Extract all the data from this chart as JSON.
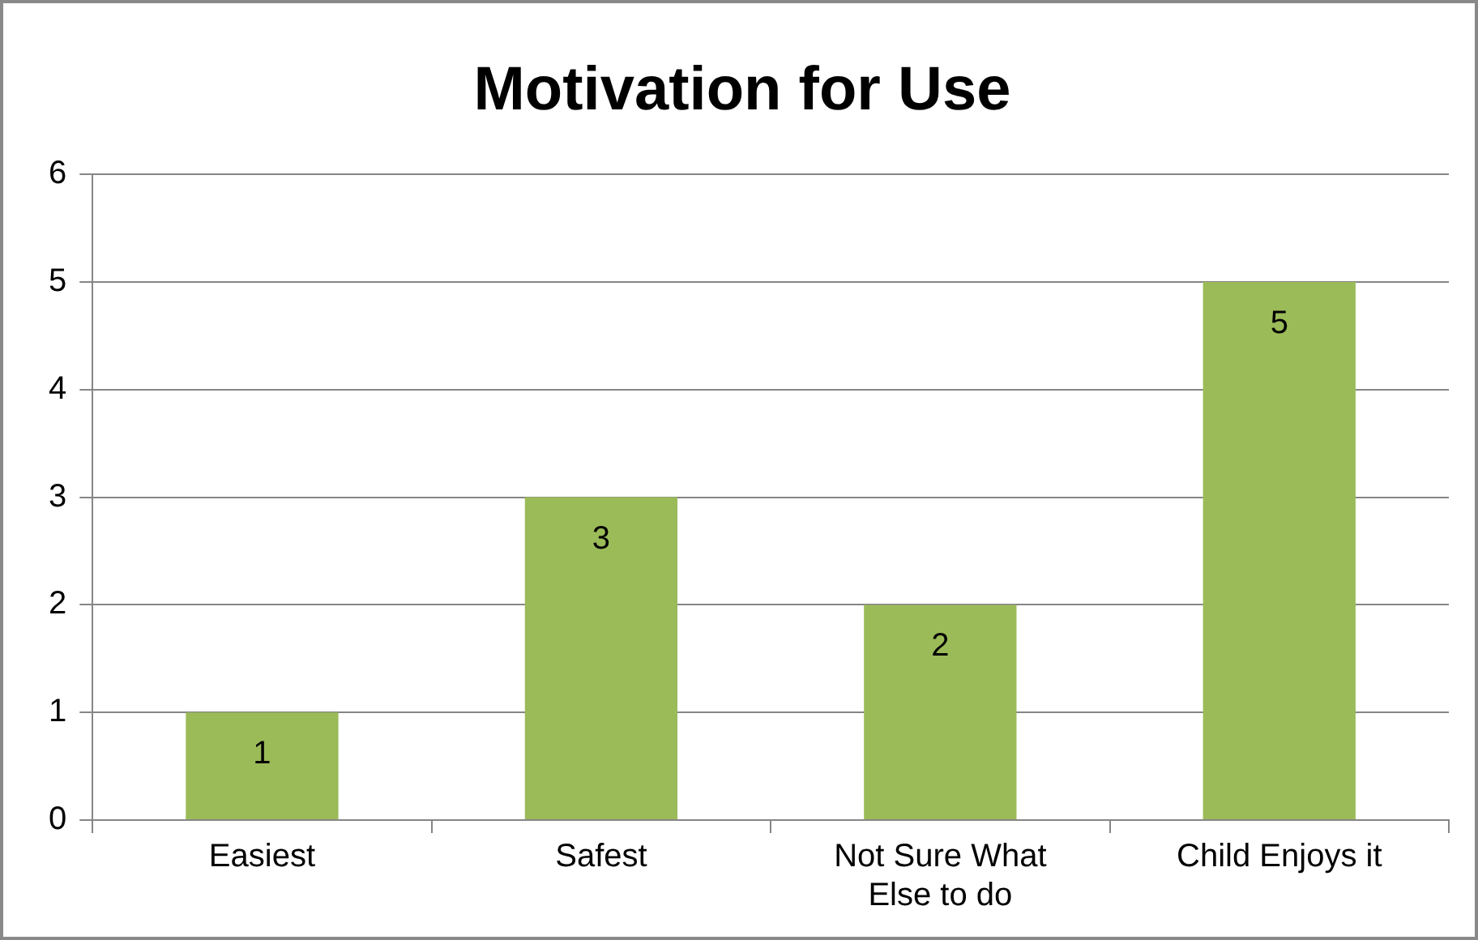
{
  "chart_data": {
    "type": "bar",
    "title": "Motivation for Use",
    "categories": [
      "Easiest",
      "Safest",
      "Not Sure What Else to do",
      "Child Enjoys it"
    ],
    "values": [
      1,
      3,
      2,
      5
    ],
    "color": "#9bbb59",
    "ylim": [
      0,
      6
    ],
    "yticks": [
      0,
      1,
      2,
      3,
      4,
      5,
      6
    ],
    "grid": "y",
    "legend": false,
    "data_labels": true
  }
}
